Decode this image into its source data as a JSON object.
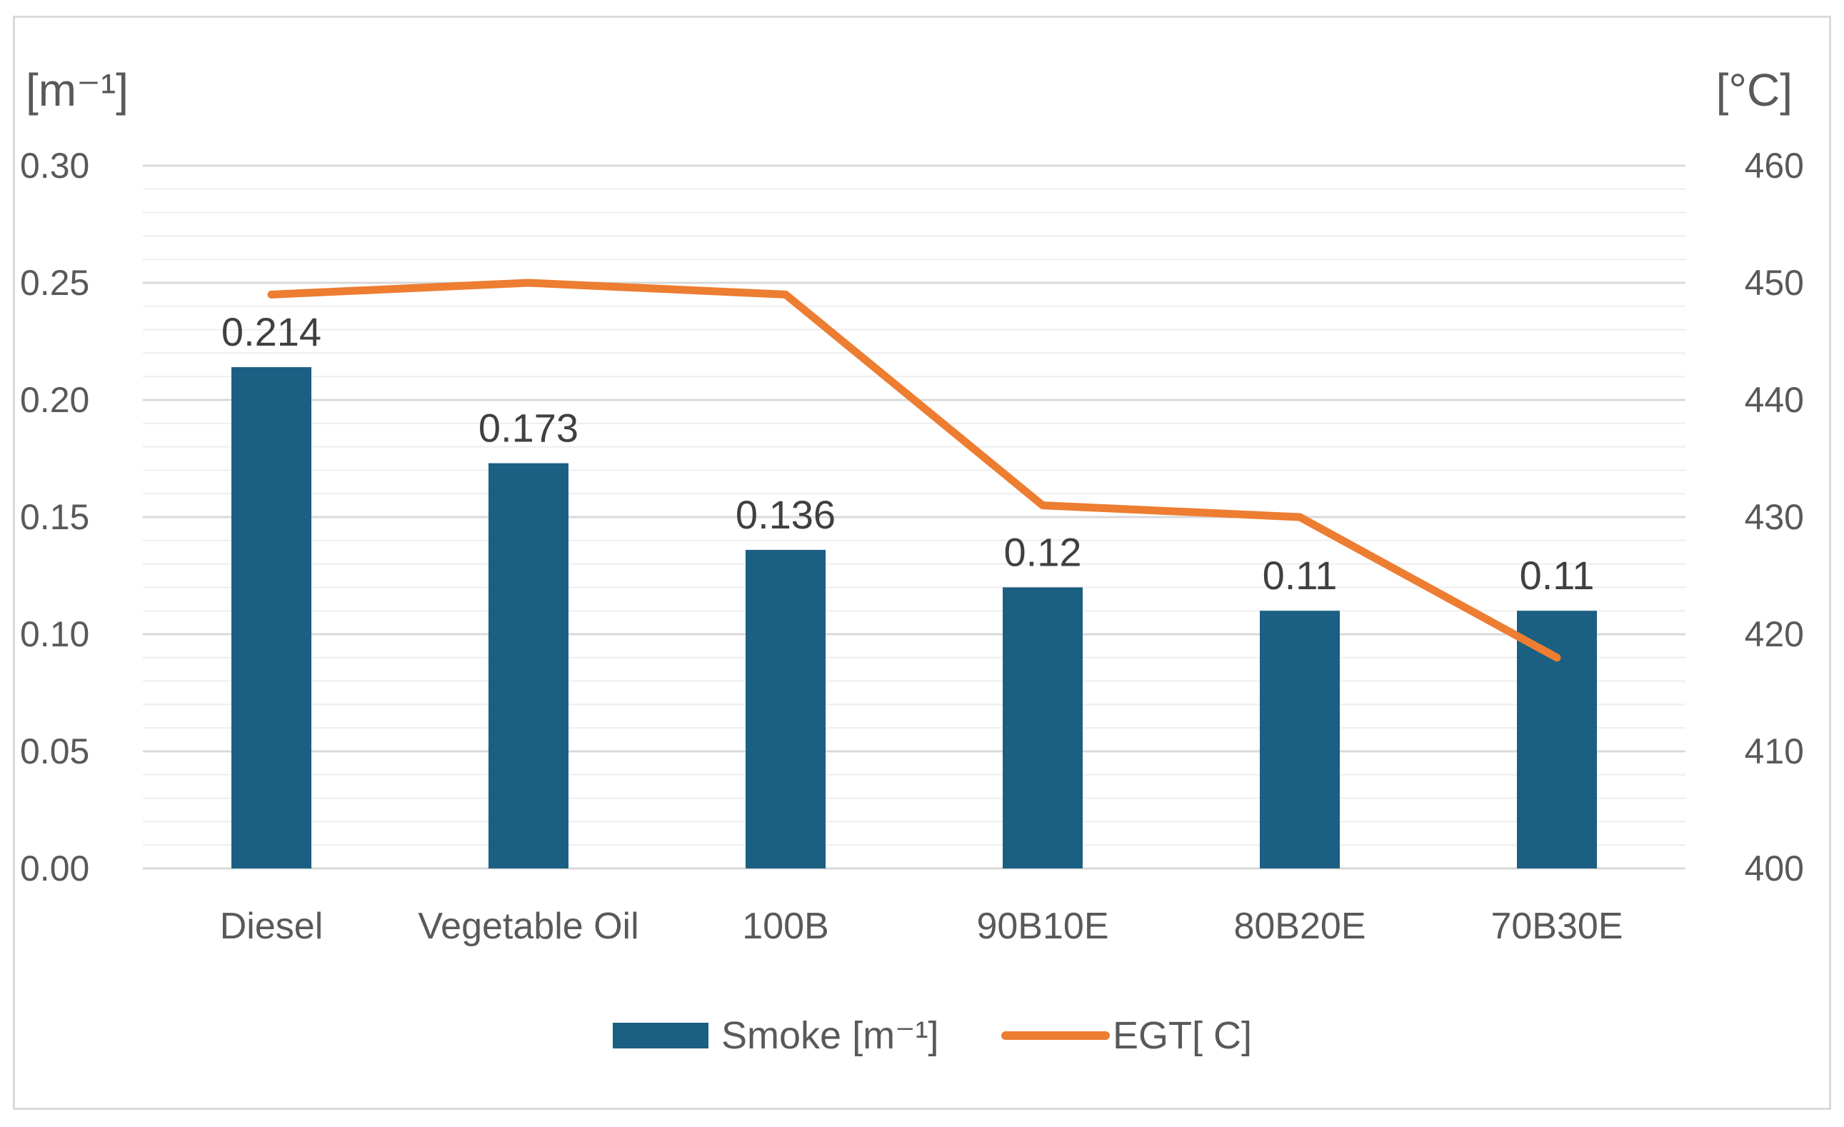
{
  "chart_data": {
    "type": "bar",
    "categories": [
      "Diesel",
      "Vegetable Oil",
      "100B",
      "90B10E",
      "80B20E",
      "70B30E"
    ],
    "series": [
      {
        "name": "Smoke [m⁻¹]",
        "kind": "bar",
        "axis": "left",
        "color": "#1b5f82",
        "values": [
          0.214,
          0.173,
          0.136,
          0.12,
          0.11,
          0.11
        ],
        "data_labels": [
          "0.214",
          "0.173",
          "0.136",
          "0.12",
          "0.11",
          "0.11"
        ]
      },
      {
        "name": "EGT[ C]",
        "kind": "line",
        "axis": "right",
        "color": "#ed7d31",
        "values": [
          449,
          450,
          449,
          431,
          430,
          418
        ]
      }
    ],
    "y_left": {
      "unit_label": "[m⁻¹]",
      "ylim": [
        0,
        0.3
      ],
      "ticks": [
        "0.30",
        "0.25",
        "0.20",
        "0.15",
        "0.10",
        "0.05",
        "0.00"
      ]
    },
    "y_right": {
      "unit_label": "[°C]",
      "ylim": [
        400,
        460
      ],
      "ticks": [
        "460",
        "450",
        "440",
        "430",
        "420",
        "410",
        "400"
      ]
    },
    "grid": "major and minor horizontal",
    "legend_position": "bottom-center",
    "colors": {
      "axis_text": "#595959",
      "grid_major": "#d9d9d9",
      "grid_minor": "#eeeeee"
    }
  }
}
